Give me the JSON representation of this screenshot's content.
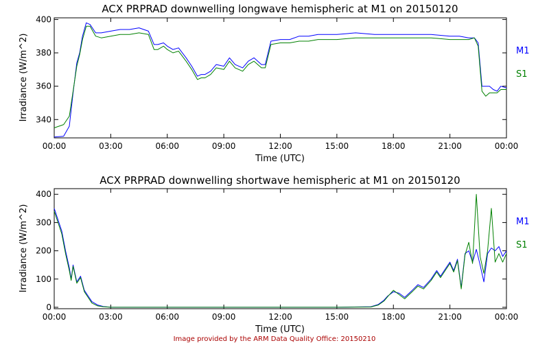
{
  "colors": {
    "series_1": "#0000ff",
    "series_2": "#008000",
    "footer": "#aa0000",
    "frame": "#000000",
    "background": "#ffffff"
  },
  "footer": "Image provided by the ARM Data Quality Office: 20150210",
  "chart_data": [
    {
      "type": "line",
      "title": "ACX PRPRAD downwelling longwave hemispheric at M1 on 20150120",
      "xlabel": "Time (UTC)",
      "ylabel": "Irradiance (W/m^2)",
      "x_unit": "hours UTC",
      "xlim": [
        0,
        24
      ],
      "ylim": [
        329,
        401
      ],
      "x_ticks": [
        "00:00",
        "03:00",
        "06:00",
        "09:00",
        "12:00",
        "15:00",
        "18:00",
        "21:00",
        "00:00"
      ],
      "y_ticks": [
        340,
        360,
        380,
        400
      ],
      "grid": false,
      "legend_position": "right",
      "x": [
        0.0,
        0.5,
        0.8,
        1.0,
        1.2,
        1.35,
        1.5,
        1.7,
        1.9,
        2.2,
        2.5,
        3.0,
        3.5,
        4.0,
        4.5,
        5.0,
        5.3,
        5.5,
        5.8,
        6.0,
        6.3,
        6.6,
        7.0,
        7.3,
        7.6,
        7.8,
        8.0,
        8.3,
        8.6,
        9.0,
        9.3,
        9.6,
        10.0,
        10.3,
        10.6,
        11.0,
        11.2,
        11.5,
        12.0,
        12.5,
        13.0,
        13.5,
        14.0,
        15.0,
        16.0,
        17.0,
        18.0,
        19.0,
        20.0,
        21.0,
        21.5,
        22.0,
        22.3,
        22.5,
        22.7,
        22.9,
        23.1,
        23.3,
        23.5,
        23.7,
        24.0
      ],
      "series": [
        {
          "name": "M1",
          "values": [
            329.5,
            330,
            336,
            356,
            374,
            380,
            390,
            398,
            397,
            392,
            392,
            393,
            394,
            394,
            395,
            393,
            385,
            385,
            386,
            384,
            382,
            383,
            377,
            372,
            366,
            367,
            367,
            369,
            373,
            372,
            377,
            373,
            371,
            375,
            377,
            373,
            373,
            387,
            388,
            388,
            390,
            390,
            391,
            391,
            392,
            391,
            391,
            391,
            391,
            390,
            390,
            389,
            389,
            386,
            360,
            360,
            360,
            358,
            357,
            360,
            359
          ]
        },
        {
          "name": "S1",
          "values": [
            335,
            337,
            342,
            357,
            372,
            379,
            388,
            396,
            396,
            390,
            389,
            390,
            391,
            391,
            392,
            391,
            382,
            382,
            384,
            382,
            380,
            381,
            375,
            370,
            364,
            365,
            365,
            367,
            371,
            370,
            375,
            371,
            369,
            373,
            375,
            371,
            371,
            385,
            386,
            386,
            387,
            387,
            388,
            388,
            389,
            389,
            389,
            389,
            389,
            388,
            388,
            388,
            389,
            384,
            357,
            354,
            356,
            356,
            356,
            358,
            358
          ]
        }
      ]
    },
    {
      "type": "line",
      "title": "ACX PRPRAD downwelling shortwave hemispheric at M1 on 20150120",
      "xlabel": "Time (UTC)",
      "ylabel": "Irradiance (W/m^2)",
      "x_unit": "hours UTC",
      "xlim": [
        0,
        24
      ],
      "ylim": [
        -5,
        420
      ],
      "x_ticks": [
        "00:00",
        "03:00",
        "06:00",
        "09:00",
        "12:00",
        "15:00",
        "18:00",
        "21:00",
        "00:00"
      ],
      "y_ticks": [
        0,
        100,
        200,
        300,
        400
      ],
      "grid": false,
      "legend_position": "right",
      "x": [
        0.0,
        0.2,
        0.4,
        0.6,
        0.8,
        0.9,
        1.0,
        1.2,
        1.4,
        1.6,
        1.8,
        2.0,
        2.3,
        2.6,
        3.0,
        6.0,
        9.0,
        12.0,
        15.0,
        16.8,
        17.2,
        17.5,
        17.7,
        18.0,
        18.3,
        18.6,
        19.0,
        19.3,
        19.6,
        20.0,
        20.3,
        20.5,
        20.8,
        21.0,
        21.2,
        21.4,
        21.6,
        21.8,
        22.0,
        22.2,
        22.4,
        22.6,
        22.8,
        23.0,
        23.2,
        23.4,
        23.6,
        23.8,
        24.0
      ],
      "series": [
        {
          "name": "M1",
          "values": [
            350,
            310,
            270,
            200,
            140,
            100,
            150,
            90,
            110,
            60,
            40,
            20,
            8,
            3,
            0,
            0,
            0,
            0,
            0,
            2,
            10,
            25,
            40,
            55,
            50,
            35,
            60,
            80,
            70,
            100,
            130,
            110,
            140,
            160,
            130,
            170,
            70,
            190,
            200,
            160,
            205,
            150,
            90,
            190,
            210,
            200,
            215,
            180,
            200
          ]
        },
        {
          "name": "S1",
          "values": [
            340,
            300,
            260,
            190,
            130,
            95,
            145,
            85,
            105,
            55,
            35,
            15,
            5,
            2,
            0,
            0,
            0,
            0,
            0,
            1,
            8,
            22,
            38,
            60,
            45,
            30,
            55,
            75,
            65,
            95,
            125,
            105,
            135,
            155,
            125,
            165,
            65,
            185,
            230,
            155,
            400,
            180,
            120,
            200,
            350,
            160,
            190,
            160,
            190
          ]
        }
      ]
    }
  ]
}
